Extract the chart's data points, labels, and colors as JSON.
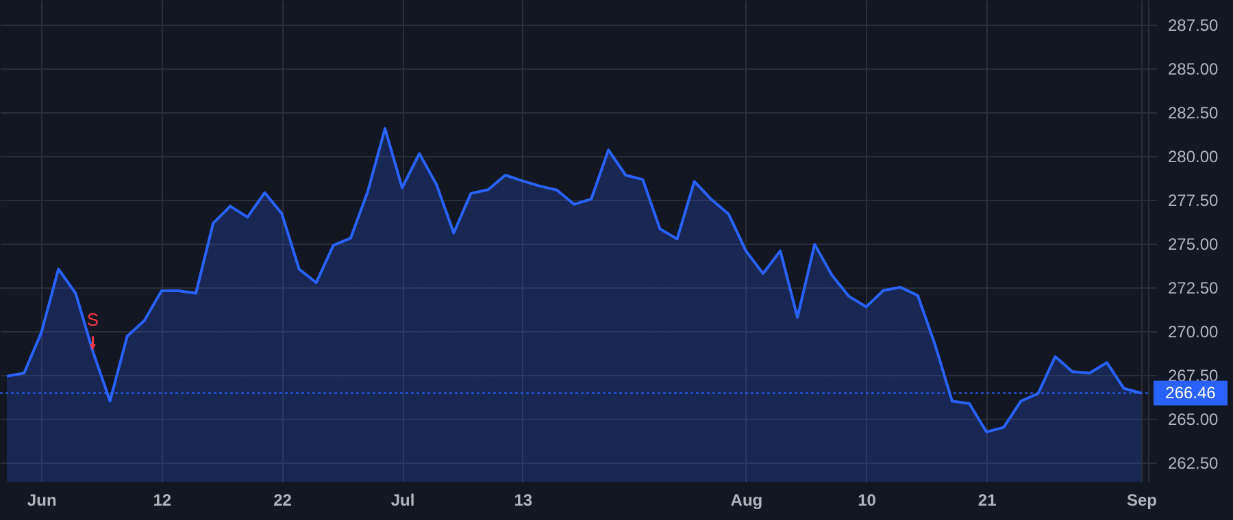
{
  "chart_data": {
    "type": "area",
    "categories": [
      null,
      null,
      "Jun",
      null,
      null,
      null,
      null,
      null,
      null,
      "12",
      null,
      null,
      null,
      null,
      null,
      null,
      "22",
      null,
      null,
      null,
      null,
      null,
      null,
      "Jul",
      null,
      null,
      null,
      null,
      null,
      null,
      "13",
      null,
      null,
      null,
      null,
      null,
      null,
      null,
      null,
      null,
      null,
      null,
      null,
      "Aug",
      null,
      null,
      null,
      null,
      null,
      null,
      "10",
      null,
      null,
      null,
      null,
      null,
      null,
      "21",
      null,
      null,
      null,
      null,
      null,
      null,
      null,
      null,
      "Sep"
    ],
    "series": [
      {
        "color": "#2962ff",
        "values": [
          267.42,
          267.6,
          269.9,
          273.54,
          272.16,
          268.85,
          266.0,
          269.7,
          270.6,
          272.3,
          272.3,
          272.16,
          276.15,
          277.13,
          276.5,
          277.9,
          276.7,
          273.54,
          272.76,
          274.9,
          275.3,
          277.97,
          281.56,
          278.18,
          280.13,
          278.36,
          275.6,
          277.86,
          278.07,
          278.9,
          278.57,
          278.28,
          278.05,
          277.24,
          277.53,
          280.34,
          278.9,
          278.65,
          275.83,
          275.26,
          278.54,
          277.5,
          276.67,
          274.58,
          273.28,
          274.58,
          270.78,
          274.95,
          273.2,
          271.98,
          271.38,
          272.32,
          272.5,
          272.03,
          269.24,
          266.0,
          265.86,
          264.24,
          264.5,
          266.0,
          266.43,
          268.54,
          267.68,
          267.6,
          268.2,
          266.72,
          266.46
        ]
      },
      {
        "type": "scatter",
        "name": "S",
        "color": "#f23645",
        "marker": "triangle",
        "values": [
          null,
          null,
          null,
          null,
          null,
          269.3,
          null,
          null,
          null,
          null,
          null,
          null,
          null,
          null,
          null,
          null,
          null,
          null,
          null,
          null,
          null,
          null,
          null,
          null,
          null,
          null,
          null,
          null,
          null,
          null,
          null,
          null,
          null,
          null,
          null,
          null,
          null,
          null,
          null,
          null,
          null,
          null,
          null,
          null,
          null,
          null,
          null,
          null,
          null,
          null,
          null,
          null,
          null,
          null,
          null,
          null,
          null,
          null,
          null,
          null,
          null,
          null,
          null,
          null,
          null,
          null,
          null
        ]
      }
    ],
    "ylim": [
      261.4,
      288.9
    ],
    "yticks": [
      {
        "value": 262.5,
        "label": "262.50"
      },
      {
        "value": 265,
        "label": "265.00"
      },
      {
        "value": 267.5,
        "label": "267.50"
      },
      {
        "value": 270,
        "label": "270.00"
      },
      {
        "value": 272.5,
        "label": "272.50"
      },
      {
        "value": 275,
        "label": "275.00"
      },
      {
        "value": 277.5,
        "label": "277.50"
      },
      {
        "value": 280,
        "label": "280.00"
      },
      {
        "value": 282.5,
        "label": "282.50"
      },
      {
        "value": 285,
        "label": "285.00"
      },
      {
        "value": 287.5,
        "label": "287.50"
      }
    ],
    "ref_lines": [
      {
        "axis": "y",
        "value": 266.46,
        "label": "266.46",
        "color": "#2962ff",
        "line_style": "dotted"
      }
    ],
    "grid": true,
    "legend": false,
    "line_style": "solid",
    "marker": "none"
  }
}
